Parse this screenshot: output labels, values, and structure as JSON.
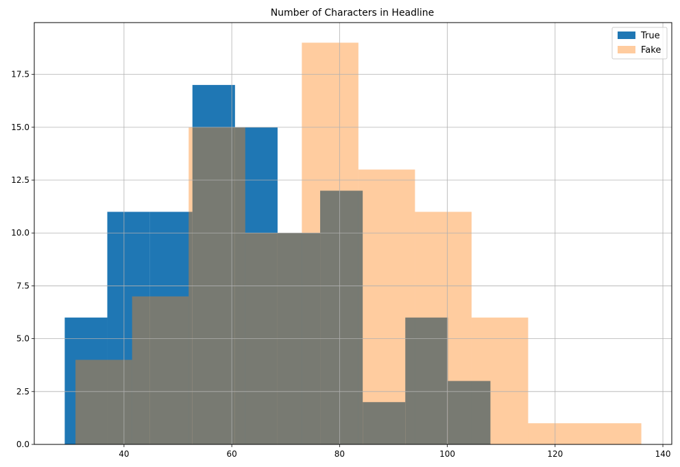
{
  "chart_data": {
    "type": "bar",
    "title": "Number of Characters in Headline",
    "xlabel": "",
    "ylabel": "",
    "xlim": [
      23.35,
      141.65
    ],
    "ylim": [
      0,
      19.95
    ],
    "xticks": [
      "40",
      "60",
      "80",
      "100",
      "120",
      "140"
    ],
    "xtick_values": [
      40,
      60,
      80,
      100,
      120,
      140
    ],
    "yticks": [
      "0.0",
      "2.5",
      "5.0",
      "7.5",
      "10.0",
      "12.5",
      "15.0",
      "17.5"
    ],
    "ytick_values": [
      0,
      2.5,
      5,
      7.5,
      10,
      12.5,
      15,
      17.5
    ],
    "grid": true,
    "legend_position": "top-right",
    "series": [
      {
        "name": "True",
        "color": "#1f77b4",
        "opacity": 1,
        "bins": [
          29,
          36.9,
          44.8,
          52.7,
          60.6,
          68.5,
          76.4,
          84.3,
          92.2,
          100.1,
          108.0
        ],
        "values": [
          6,
          11,
          11,
          17,
          15,
          10,
          12,
          2,
          6,
          3
        ]
      },
      {
        "name": "Fake",
        "color": "#ff7f0e",
        "opacity": 0.4,
        "bins": [
          31,
          41.5,
          52,
          62.5,
          73,
          83.5,
          94,
          104.5,
          115,
          125.5,
          136
        ],
        "values": [
          4,
          7,
          15,
          10,
          19,
          13,
          11,
          6,
          1,
          1
        ]
      }
    ]
  }
}
